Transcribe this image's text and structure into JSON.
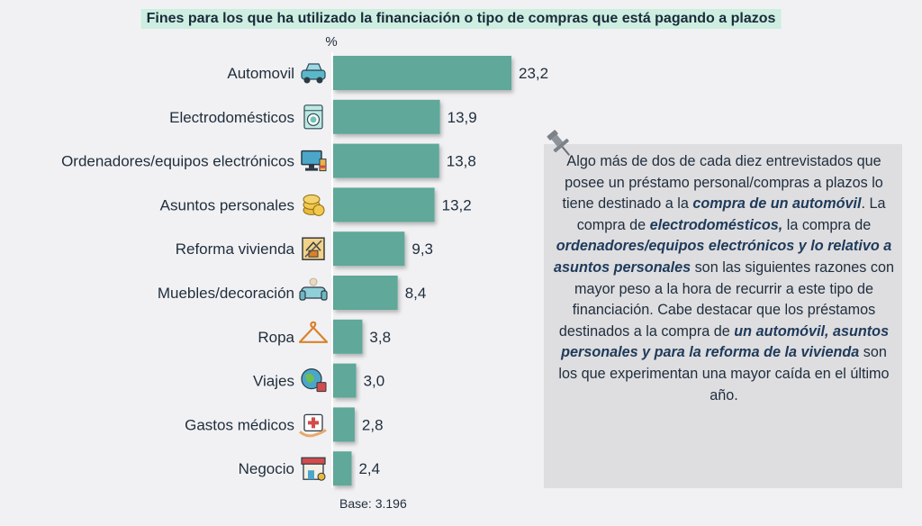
{
  "title": "Fines para los que ha utilizado la financiación o tipo de compras que está pagando a plazos",
  "base_label": "Base: 3.196",
  "note": {
    "segments": [
      {
        "text": "Algo más de dos de cada diez entrevistados que posee un préstamo personal/compras a plazos lo tiene destinado a la ",
        "emph": false
      },
      {
        "text": "compra de un automóvil",
        "emph": true
      },
      {
        "text": ". La compra de ",
        "emph": false
      },
      {
        "text": "electrodomésticos,",
        "emph": true
      },
      {
        "text": "  la compra de ",
        "emph": false
      },
      {
        "text": "ordenadores/equipos electrónicos y lo relativo a asuntos personales",
        "emph": true
      },
      {
        "text": " son las siguientes razones con mayor peso a la hora de recurrir a este tipo de financiación.  Cabe destacar que los préstamos destinados a la compra de ",
        "emph": false
      },
      {
        "text": "un automóvil, asuntos personales y para la reforma de la vivienda",
        "emph": true
      },
      {
        "text": " son los que experimentan una mayor caída en el último año.",
        "emph": false
      }
    ]
  },
  "chart_data": {
    "type": "bar",
    "orientation": "horizontal",
    "unit_label": "%",
    "categories": [
      "Automovil",
      "Electrodomésticos",
      "Ordenadores/equipos electrónicos",
      "Asuntos personales",
      "Reforma vivienda",
      "Muebles/decoración",
      "Ropa",
      "Viajes",
      "Gastos médicos",
      "Negocio"
    ],
    "values": [
      23.2,
      13.9,
      13.8,
      13.2,
      9.3,
      8.4,
      3.8,
      3.0,
      2.8,
      2.4
    ],
    "value_labels": [
      "23,2",
      "13,9",
      "13,8",
      "13,2",
      "9,3",
      "8,4",
      "3,8",
      "3,0",
      "2,8",
      "2,4"
    ],
    "icons": [
      "car-icon",
      "washing-machine-icon",
      "computer-icon",
      "coins-icon",
      "house-tools-icon",
      "sofa-icon",
      "hanger-icon",
      "globe-icon",
      "medical-kit-icon",
      "shop-icon"
    ],
    "bar_color": "#5fa89a",
    "xlim": [
      0,
      23.2
    ]
  }
}
